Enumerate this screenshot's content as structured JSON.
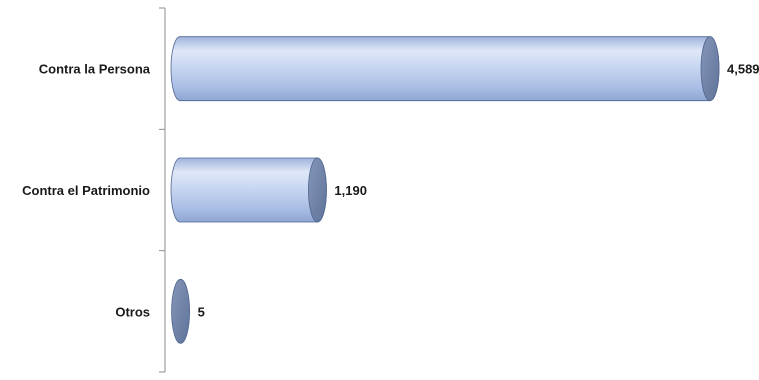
{
  "chart_data": {
    "type": "bar",
    "orientation": "horizontal",
    "bar_shape": "cylinder",
    "categories": [
      "Contra la Persona",
      "Contra el Patrimonio",
      "Otros"
    ],
    "values": [
      4589,
      1190,
      5
    ],
    "value_labels": [
      "4,589",
      "1,190",
      "5"
    ],
    "title": "",
    "xlabel": "",
    "ylabel": "",
    "xlim": [
      0,
      4589
    ],
    "grid": false,
    "legend": "none",
    "colors": {
      "bar_light": "#dfe8f8",
      "bar_mid": "#b7c8ea",
      "bar_dark": "#8ea6d2",
      "bar_end": "#6f84ac",
      "bar_outline": "#4f6590"
    }
  }
}
